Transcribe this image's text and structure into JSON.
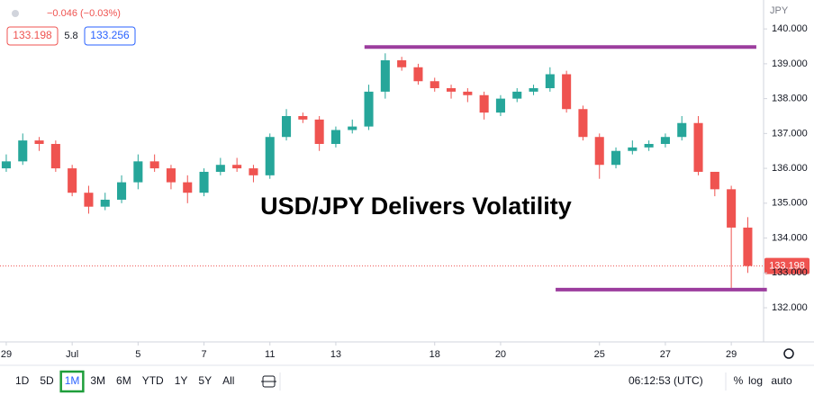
{
  "ui": {
    "change": "−0.046 (−0.03%)",
    "bid": "133.198",
    "spread": "5.8",
    "ask": "133.256",
    "currency": "JPY",
    "timeframes": [
      "1D",
      "5D",
      "1M",
      "3M",
      "6M",
      "YTD",
      "1Y",
      "5Y",
      "All"
    ],
    "active_timeframe": 2,
    "clock": "06:12:53 (UTC)",
    "scale_buttons": [
      "%",
      "log",
      "auto"
    ]
  },
  "chart_data": {
    "type": "candlestick",
    "title": "USD/JPY Delivers Volatility",
    "x": [
      0,
      0.5,
      1,
      1.5,
      2,
      2.5,
      3,
      3.5,
      4,
      4.5,
      5,
      5.5,
      6,
      6.5,
      7,
      7.5,
      8,
      8.5,
      9,
      9.5,
      10,
      10.5,
      11,
      11.5,
      12,
      12.5,
      13,
      13.5,
      14,
      14.5,
      15,
      15.5,
      16,
      16.5,
      17,
      17.5,
      18,
      18.5,
      19,
      19.5,
      20,
      20.5,
      21,
      21.5,
      22,
      22.5
    ],
    "open": [
      136.0,
      136.2,
      136.8,
      136.7,
      136.0,
      135.3,
      134.9,
      135.1,
      135.6,
      136.2,
      136.0,
      135.6,
      135.3,
      135.9,
      136.1,
      136.0,
      135.8,
      136.9,
      137.5,
      137.4,
      136.7,
      137.1,
      137.2,
      138.2,
      139.1,
      138.9,
      138.5,
      138.3,
      138.2,
      138.1,
      137.6,
      138.0,
      138.2,
      138.3,
      138.7,
      137.7,
      136.9,
      136.1,
      136.5,
      136.6,
      136.7,
      136.9,
      137.3,
      135.9,
      135.4,
      134.3
    ],
    "high": [
      136.4,
      137.0,
      136.9,
      136.8,
      136.1,
      135.5,
      135.3,
      135.8,
      136.4,
      136.4,
      136.1,
      135.8,
      136.0,
      136.3,
      136.3,
      136.1,
      137.0,
      137.7,
      137.6,
      137.5,
      137.2,
      137.4,
      138.4,
      139.3,
      139.2,
      139.0,
      138.6,
      138.4,
      138.3,
      138.2,
      138.1,
      138.3,
      138.4,
      138.9,
      138.8,
      137.8,
      137.0,
      136.6,
      136.8,
      136.8,
      137.0,
      137.5,
      137.5,
      135.9,
      135.5,
      134.6
    ],
    "low": [
      135.9,
      136.1,
      136.5,
      135.9,
      135.2,
      134.7,
      134.8,
      135.0,
      135.4,
      135.9,
      135.4,
      135.0,
      135.2,
      135.8,
      135.9,
      135.6,
      135.7,
      136.8,
      137.3,
      136.5,
      136.6,
      137.0,
      137.1,
      138.0,
      138.8,
      138.4,
      138.2,
      138.0,
      137.9,
      137.4,
      137.5,
      137.9,
      138.1,
      138.2,
      137.6,
      136.8,
      135.7,
      136.0,
      136.4,
      136.5,
      136.6,
      136.8,
      135.8,
      135.2,
      132.55,
      133.0
    ],
    "close": [
      136.2,
      136.8,
      136.7,
      136.0,
      135.3,
      134.9,
      135.1,
      135.6,
      136.2,
      136.0,
      135.6,
      135.3,
      135.9,
      136.1,
      136.0,
      135.8,
      136.9,
      137.5,
      137.4,
      136.7,
      137.1,
      137.2,
      138.2,
      139.1,
      138.9,
      138.5,
      138.3,
      138.2,
      138.1,
      137.6,
      138.0,
      138.2,
      138.3,
      138.7,
      137.7,
      136.9,
      136.1,
      136.5,
      136.6,
      136.7,
      136.9,
      137.3,
      135.9,
      135.4,
      134.3,
      133.2
    ],
    "up_color": "#26a69a",
    "down_color": "#ef5350",
    "xlim": [
      -0.19,
      22.98
    ],
    "xticks": [
      {
        "value": 0,
        "label": "29"
      },
      {
        "value": 2,
        "label": "Jul"
      },
      {
        "value": 4,
        "label": "5"
      },
      {
        "value": 6,
        "label": "7"
      },
      {
        "value": 8,
        "label": "11"
      },
      {
        "value": 10,
        "label": "13"
      },
      {
        "value": 13,
        "label": "18"
      },
      {
        "value": 15,
        "label": "20"
      },
      {
        "value": 18,
        "label": "25"
      },
      {
        "value": 20,
        "label": "27"
      },
      {
        "value": 22,
        "label": "29"
      }
    ],
    "ylim": [
      131.02,
      140.83
    ],
    "yticks": [
      {
        "value": 132,
        "label": "132.000"
      },
      {
        "value": 133,
        "label": "133.000"
      },
      {
        "value": 134,
        "label": "134.000"
      },
      {
        "value": 135,
        "label": "135.000"
      },
      {
        "value": 136,
        "label": "136.000"
      },
      {
        "value": 137,
        "label": "137.000"
      },
      {
        "value": 138,
        "label": "138.000"
      },
      {
        "value": 139,
        "label": "139.000"
      },
      {
        "value": 140,
        "label": "140.000"
      }
    ],
    "last_price": 133.198,
    "lines": [
      {
        "value": 139.48,
        "x": [
          10.87,
          22.76
        ]
      },
      {
        "value": 132.52,
        "x": [
          16.67,
          23.08
        ]
      }
    ],
    "line_color": "#9c3d9e"
  }
}
